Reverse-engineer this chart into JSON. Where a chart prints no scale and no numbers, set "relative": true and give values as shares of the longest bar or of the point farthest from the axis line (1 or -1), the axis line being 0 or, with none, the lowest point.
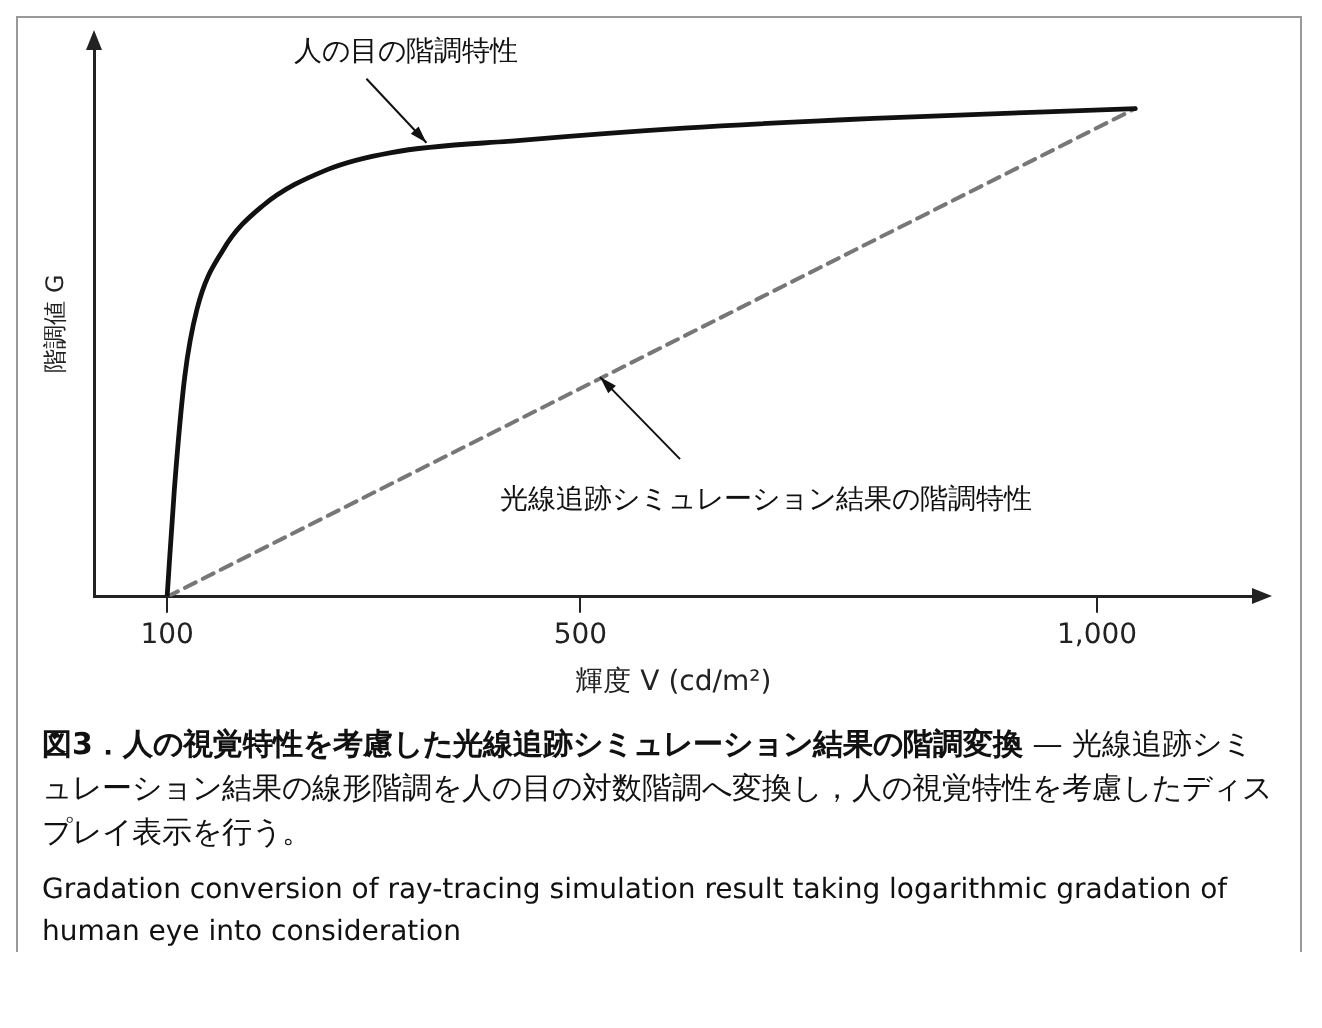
{
  "chart_data": {
    "type": "line",
    "relative": true,
    "title": "図3．人の視覚特性を考慮した光線追跡シミュレーション結果の階調変換",
    "subtitle": "— 光線追跡シミュレーション結果の線形階調を人の目の対数階調へ変換し，人の視覚特性を考慮したディスプレイ表示を行う。",
    "xlabel": "輝度 V (cd/m²)",
    "ylabel": "階調値 G",
    "xlim": [
      30,
      1150
    ],
    "xticks": [
      100,
      500,
      {
        "value": 1000,
        "label": "1,000"
      }
    ],
    "grid": false,
    "legend": false,
    "marker": "none",
    "series": [
      {
        "color": "#111111",
        "line_style": "solid",
        "x": [
          100,
          107,
          117,
          129,
          154,
          192,
          255,
          317,
          442,
          600,
          784,
          1037
        ],
        "values": [
          0,
          0.22,
          0.45,
          0.59,
          0.71,
          0.8,
          0.875,
          0.91,
          0.935,
          0.96,
          0.98,
          1
        ]
      },
      {
        "color": "#777777",
        "line_style": "dashed",
        "x": [
          100,
          1037
        ],
        "values": [
          0,
          1
        ]
      }
    ],
    "annotations": [
      {
        "text": "人の目の階調特性",
        "x": 351,
        "y": 0.93
      },
      {
        "text": "光線追跡シミュレーション結果の階調特性",
        "x": 519,
        "y": 0.45
      },
      "Gradation conversion of ray-tracing simulation result taking logarithmic gradation of human eye into consideration"
    ]
  }
}
